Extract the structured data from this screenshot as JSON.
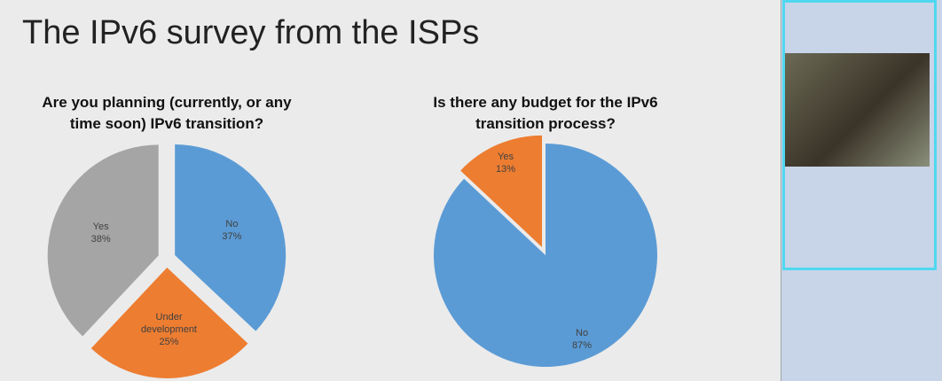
{
  "slide_title": "The IPv6 survey from the ISPs",
  "chart_data": [
    {
      "type": "pie",
      "title": "Are you planning (currently, or any time soon) IPv6 transition?",
      "categories": [
        "No",
        "Under development",
        "Yes"
      ],
      "values": [
        37,
        25,
        38
      ],
      "value_labels": [
        "37%",
        "25%",
        "38%"
      ],
      "colors": [
        "#5b9bd5",
        "#ed7d31",
        "#a5a5a5"
      ]
    },
    {
      "type": "pie",
      "title": "Is there any budget for the IPv6 transition process?",
      "categories": [
        "No",
        "Yes"
      ],
      "values": [
        87,
        13
      ],
      "value_labels": [
        "87%",
        "13%"
      ],
      "colors": [
        "#5b9bd5",
        "#ed7d31"
      ]
    }
  ]
}
